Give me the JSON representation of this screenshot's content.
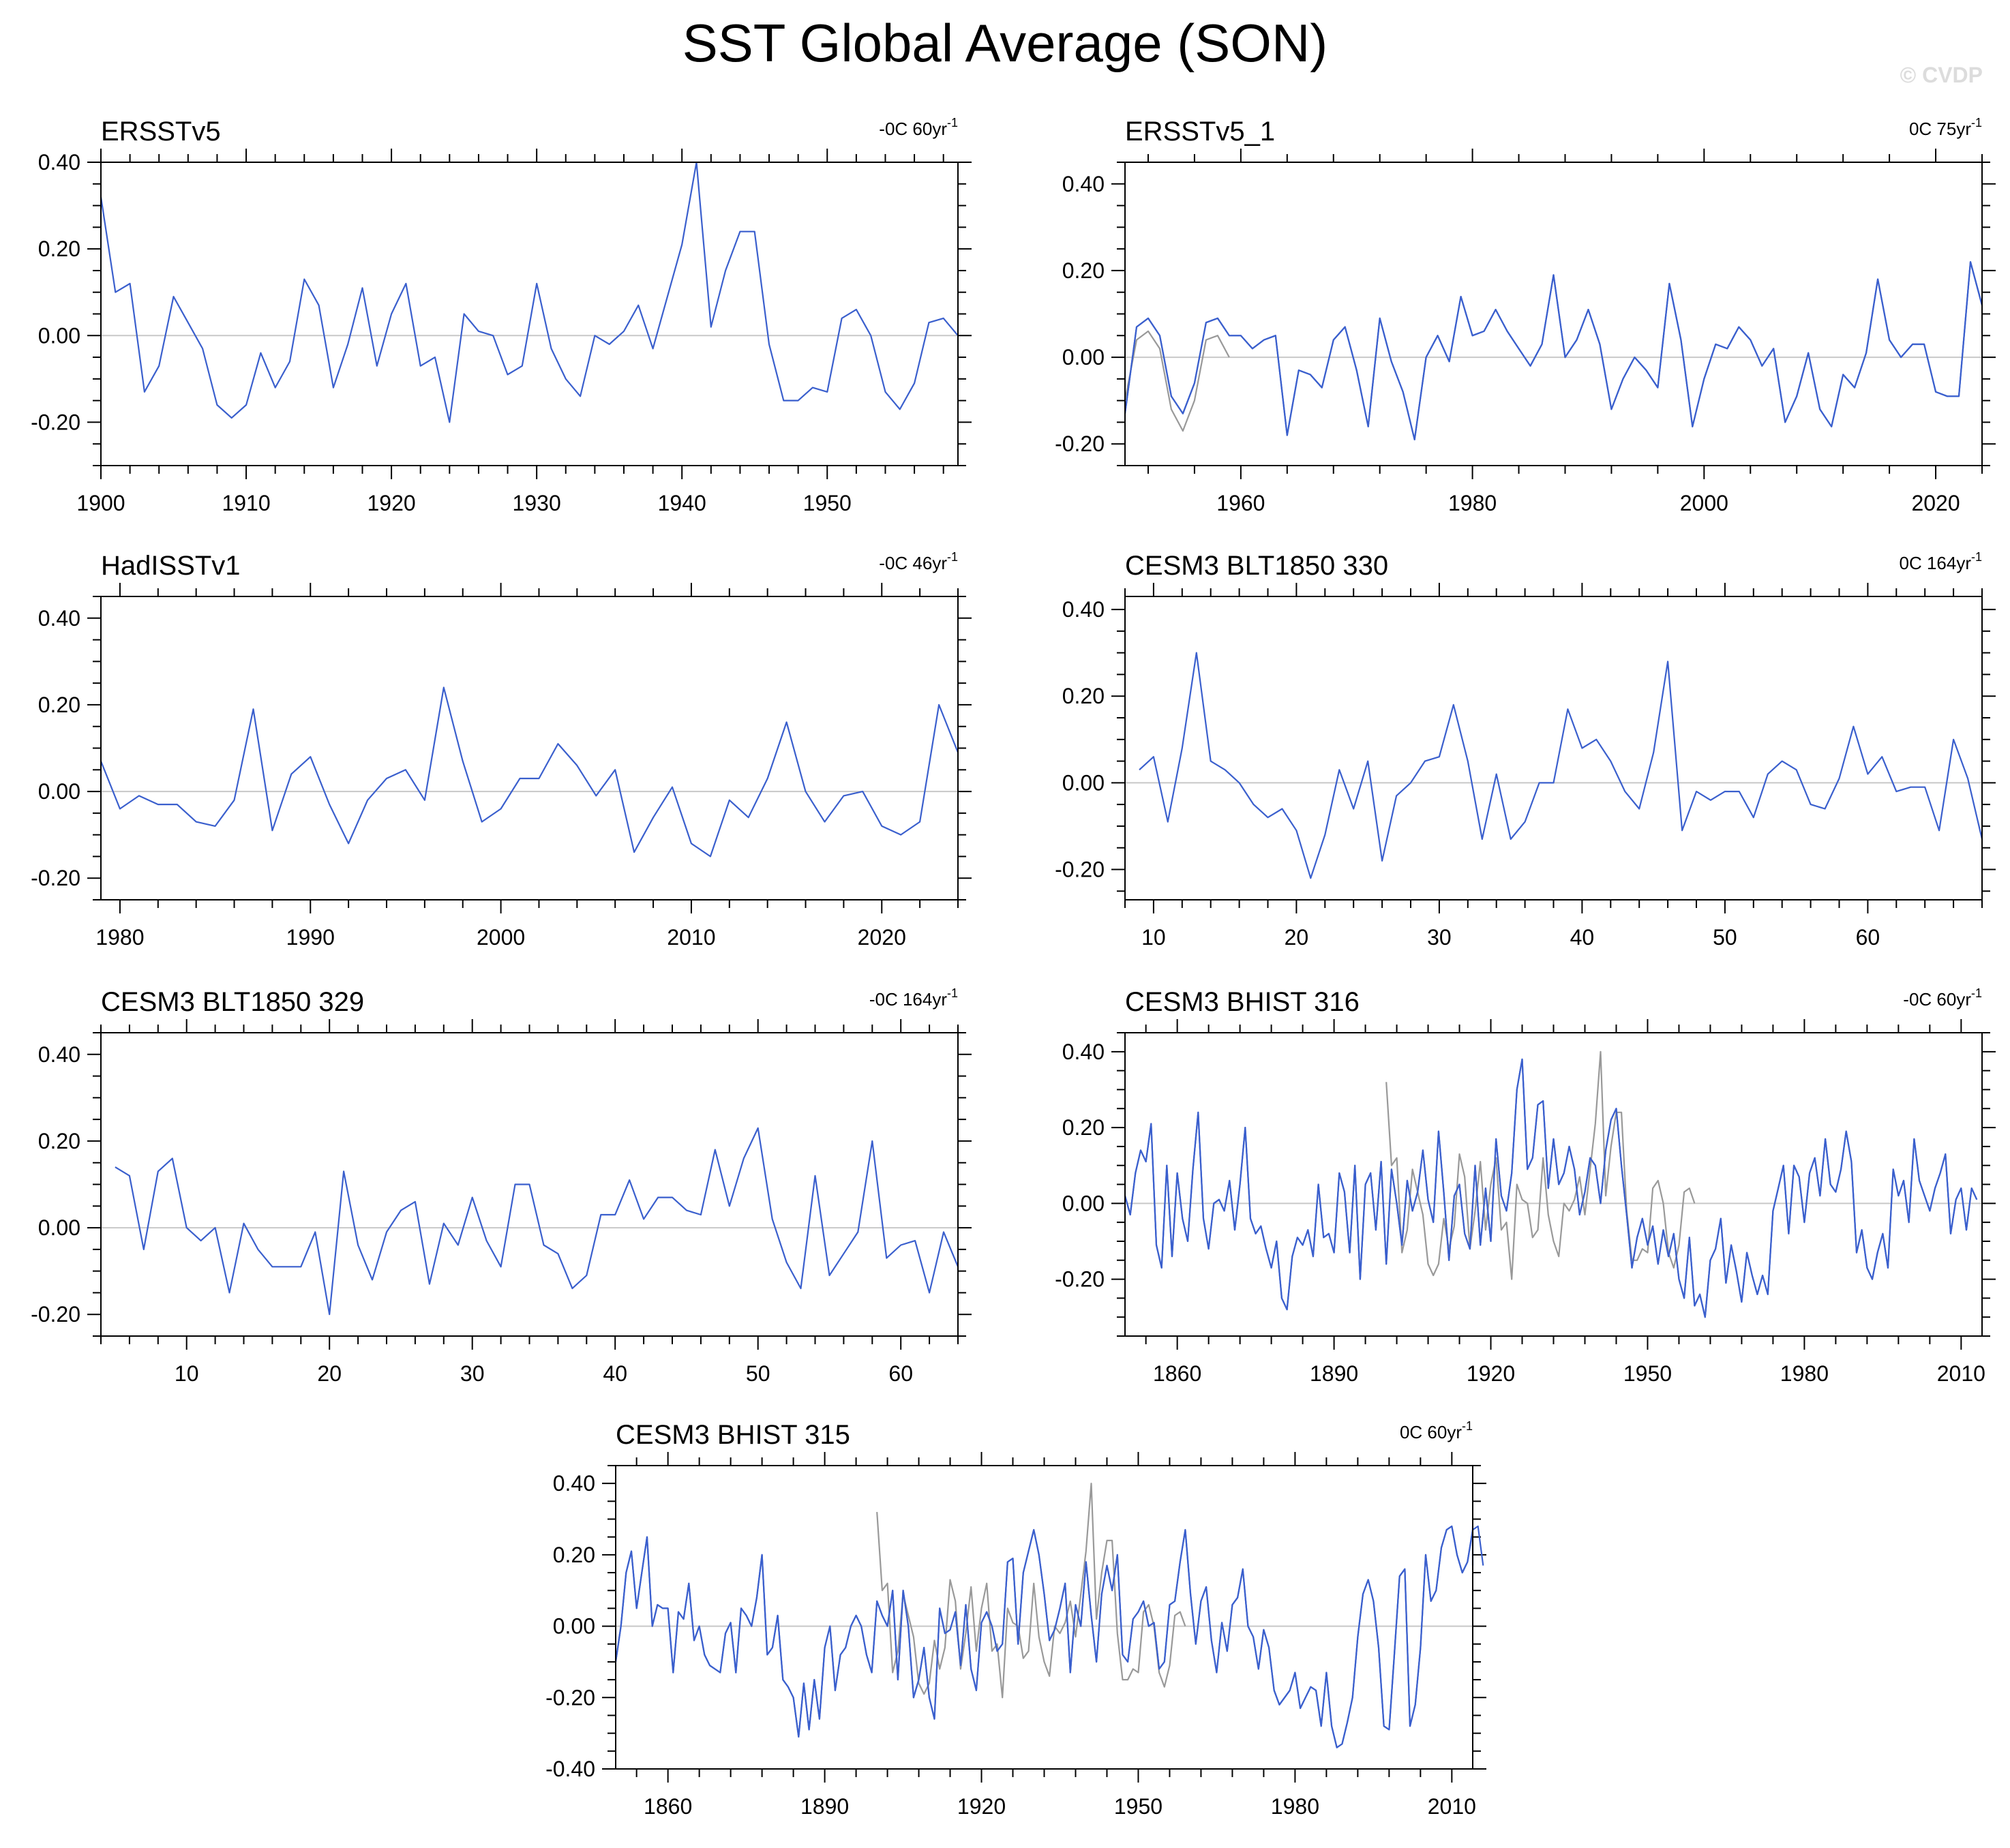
{
  "title": "SST Global Average (SON)",
  "watermark": "© CVDP",
  "colors": {
    "series": "#3a5fcd",
    "observed": "#999999",
    "zero_line": "#c8c8c8"
  },
  "chart_data": [
    {
      "type": "line",
      "title": "ERSSTv5",
      "trend": "-0C 60yr-1",
      "xlim": [
        1900,
        1959
      ],
      "ylim": [
        -0.3,
        0.4
      ],
      "xticks": [
        1900,
        1910,
        1920,
        1930,
        1940,
        1950
      ],
      "yticks": [
        -0.2,
        0.0,
        0.2,
        0.4
      ],
      "x_start": 1900,
      "x_step": 1,
      "series": [
        {
          "name": "ERSSTv5",
          "values": [
            0.32,
            0.1,
            0.12,
            -0.13,
            -0.07,
            0.09,
            0.03,
            -0.03,
            -0.16,
            -0.19,
            -0.16,
            -0.04,
            -0.12,
            -0.06,
            0.13,
            0.07,
            -0.12,
            -0.02,
            0.11,
            -0.07,
            0.05,
            0.12,
            -0.07,
            -0.05,
            -0.2,
            0.05,
            0.01,
            0.0,
            -0.09,
            -0.07,
            0.12,
            -0.03,
            -0.1,
            -0.14,
            0.0,
            -0.02,
            0.01,
            0.07,
            -0.03,
            0.09,
            0.21,
            0.4,
            0.02,
            0.15,
            0.24,
            0.24,
            -0.02,
            -0.15,
            -0.15,
            -0.12,
            -0.13,
            0.04,
            0.06,
            0.0,
            -0.13,
            -0.17,
            -0.11,
            0.03,
            0.04,
            0.0
          ]
        }
      ]
    },
    {
      "type": "line",
      "title": "ERSSTv5_1",
      "trend": "0C 75yr-1",
      "xlim": [
        1950,
        2024
      ],
      "ylim": [
        -0.25,
        0.45
      ],
      "xticks": [
        1960,
        1980,
        2000,
        2020
      ],
      "yticks": [
        -0.2,
        0.0,
        0.2,
        0.4
      ],
      "x_start": 1950,
      "x_step": 1,
      "series": [
        {
          "name": "ERSSTv5_1",
          "values": [
            -0.13,
            0.07,
            0.09,
            0.05,
            -0.09,
            -0.13,
            -0.06,
            0.08,
            0.09,
            0.05,
            0.05,
            0.02,
            0.04,
            0.05,
            -0.18,
            -0.03,
            -0.04,
            -0.07,
            0.04,
            0.07,
            -0.03,
            -0.16,
            0.09,
            -0.01,
            -0.08,
            -0.19,
            0.0,
            0.05,
            -0.01,
            0.14,
            0.05,
            0.06,
            0.11,
            0.06,
            0.02,
            -0.02,
            0.03,
            0.19,
            0.0,
            0.04,
            0.11,
            0.03,
            -0.12,
            -0.05,
            0.0,
            -0.03,
            -0.07,
            0.17,
            0.04,
            -0.16,
            -0.05,
            0.03,
            0.02,
            0.07,
            0.04,
            -0.02,
            0.02,
            -0.15,
            -0.09,
            0.01,
            -0.12,
            -0.16,
            -0.04,
            -0.07,
            0.01,
            0.18,
            0.04,
            0.0,
            0.03,
            0.03,
            -0.08,
            -0.09,
            -0.09,
            0.22,
            0.12
          ]
        },
        {
          "name": "observed",
          "values": [
            -0.1,
            0.04,
            0.06,
            0.02,
            -0.12,
            -0.17,
            -0.1,
            0.04,
            0.05,
            0.0
          ]
        }
      ]
    },
    {
      "type": "line",
      "title": "HadISSTv1",
      "trend": "-0C 46yr-1",
      "xlim": [
        1979,
        2024
      ],
      "ylim": [
        -0.25,
        0.45
      ],
      "xticks": [
        1980,
        1990,
        2000,
        2010,
        2020
      ],
      "yticks": [
        -0.2,
        0.0,
        0.2,
        0.4
      ],
      "x_start": 1979,
      "x_step": 1,
      "series": [
        {
          "name": "HadISSTv1",
          "values": [
            0.07,
            -0.04,
            -0.01,
            -0.03,
            -0.03,
            -0.07,
            -0.08,
            -0.02,
            0.19,
            -0.09,
            0.04,
            0.08,
            -0.03,
            -0.12,
            -0.02,
            0.03,
            0.05,
            -0.02,
            0.24,
            0.07,
            -0.07,
            -0.04,
            0.03,
            0.03,
            0.11,
            0.06,
            -0.01,
            0.05,
            -0.14,
            -0.06,
            0.01,
            -0.12,
            -0.15,
            -0.02,
            -0.06,
            0.03,
            0.16,
            0.0,
            -0.07,
            -0.01,
            0.0,
            -0.08,
            -0.1,
            -0.07,
            0.2,
            0.09
          ]
        }
      ]
    },
    {
      "type": "line",
      "title": "CESM3 BLT1850 330",
      "trend": "0C 164yr-1",
      "xlim": [
        8,
        68
      ],
      "ylim": [
        -0.27,
        0.43
      ],
      "xticks": [
        10,
        20,
        30,
        40,
        50,
        60
      ],
      "yticks": [
        -0.2,
        0.0,
        0.2,
        0.4
      ],
      "x_start": 9,
      "x_step": 1,
      "series": [
        {
          "name": "CESM3 BLT1850 330",
          "values": [
            0.03,
            0.06,
            -0.09,
            0.08,
            0.3,
            0.05,
            0.03,
            0.0,
            -0.05,
            -0.08,
            -0.06,
            -0.11,
            -0.22,
            -0.12,
            0.03,
            -0.06,
            0.05,
            -0.18,
            -0.03,
            0.0,
            0.05,
            0.06,
            0.18,
            0.05,
            -0.13,
            0.02,
            -0.13,
            -0.09,
            0.0,
            0.0,
            0.17,
            0.08,
            0.1,
            0.05,
            -0.02,
            -0.06,
            0.07,
            0.28,
            -0.11,
            -0.02,
            -0.04,
            -0.02,
            -0.02,
            -0.08,
            0.02,
            0.05,
            0.03,
            -0.05,
            -0.06,
            0.01,
            0.13,
            0.02,
            0.06,
            -0.02,
            -0.01,
            -0.01,
            -0.11,
            0.1,
            0.01,
            -0.13
          ]
        }
      ]
    },
    {
      "type": "line",
      "title": "CESM3 BLT1850 329",
      "trend": "-0C 164yr-1",
      "xlim": [
        4,
        64
      ],
      "ylim": [
        -0.25,
        0.45
      ],
      "xticks": [
        10,
        20,
        30,
        40,
        50,
        60
      ],
      "yticks": [
        -0.2,
        0.0,
        0.2,
        0.4
      ],
      "x_start": 5,
      "x_step": 1,
      "series": [
        {
          "name": "CESM3 BLT1850 329",
          "values": [
            0.14,
            0.12,
            -0.05,
            0.13,
            0.16,
            0.0,
            -0.03,
            0.0,
            -0.15,
            0.01,
            -0.05,
            -0.09,
            -0.09,
            -0.09,
            -0.01,
            -0.2,
            0.13,
            -0.04,
            -0.12,
            -0.01,
            0.04,
            0.06,
            -0.13,
            0.01,
            -0.04,
            0.07,
            -0.03,
            -0.09,
            0.1,
            0.1,
            -0.04,
            -0.06,
            -0.14,
            -0.11,
            0.03,
            0.03,
            0.11,
            0.02,
            0.07,
            0.07,
            0.04,
            0.03,
            0.18,
            0.05,
            0.16,
            0.23,
            0.02,
            -0.08,
            -0.14,
            0.12,
            -0.11,
            -0.06,
            -0.01,
            0.2,
            -0.07,
            -0.04,
            -0.03,
            -0.15,
            -0.01,
            -0.09
          ]
        }
      ]
    },
    {
      "type": "line",
      "title": "CESM3 BHIST 316",
      "trend": "-0C 60yr-1",
      "xlim": [
        1850,
        2014
      ],
      "ylim": [
        -0.35,
        0.45
      ],
      "xticks": [
        1860,
        1890,
        1920,
        1950,
        1980,
        2010
      ],
      "yticks": [
        -0.2,
        0.0,
        0.2,
        0.4
      ],
      "x_start": 1850,
      "x_step": 1,
      "series": [
        {
          "name": "CESM3 BHIST 316",
          "values": [
            0.02,
            -0.03,
            0.08,
            0.14,
            0.11,
            0.21,
            -0.11,
            -0.17,
            0.1,
            -0.14,
            0.08,
            -0.04,
            -0.1,
            0.09,
            0.24,
            -0.04,
            -0.12,
            0.0,
            0.01,
            -0.02,
            0.06,
            -0.07,
            0.05,
            0.2,
            -0.04,
            -0.08,
            -0.06,
            -0.12,
            -0.17,
            -0.1,
            -0.25,
            -0.28,
            -0.14,
            -0.09,
            -0.11,
            -0.07,
            -0.14,
            0.05,
            -0.09,
            -0.08,
            -0.13,
            0.08,
            0.03,
            -0.13,
            0.1,
            -0.2,
            0.05,
            0.08,
            -0.07,
            0.11,
            -0.16,
            0.09,
            0.0,
            -0.11,
            0.06,
            -0.02,
            0.03,
            0.14,
            0.01,
            -0.05,
            0.19,
            0.03,
            -0.15,
            0.02,
            0.05,
            -0.08,
            -0.12,
            0.1,
            -0.11,
            0.04,
            -0.1,
            0.17,
            0.02,
            -0.02,
            0.08,
            0.3,
            0.38,
            0.09,
            0.12,
            0.26,
            0.27,
            0.04,
            0.17,
            0.05,
            0.08,
            0.15,
            0.09,
            -0.03,
            0.03,
            0.12,
            0.1,
            0.0,
            0.14,
            0.22,
            0.25,
            0.1,
            -0.03,
            -0.17,
            -0.09,
            -0.04,
            -0.11,
            -0.06,
            -0.16,
            -0.07,
            -0.14,
            -0.08,
            -0.2,
            -0.25,
            -0.09,
            -0.27,
            -0.24,
            -0.3,
            -0.15,
            -0.12,
            -0.04,
            -0.21,
            -0.11,
            -0.18,
            -0.26,
            -0.13,
            -0.19,
            -0.24,
            -0.19,
            -0.24,
            -0.02,
            0.04,
            0.1,
            -0.08,
            0.1,
            0.07,
            -0.05,
            0.08,
            0.12,
            0.02,
            0.17,
            0.05,
            0.03,
            0.09,
            0.19,
            0.11,
            -0.13,
            -0.07,
            -0.17,
            -0.2,
            -0.13,
            -0.08,
            -0.17,
            0.09,
            0.02,
            0.06,
            -0.05,
            0.17,
            0.06,
            0.02,
            -0.02,
            0.04,
            0.08,
            0.13,
            -0.08,
            0.01,
            0.04,
            -0.07,
            0.04,
            0.01
          ]
        },
        {
          "name": "observed",
          "values": [
            0.32,
            0.1,
            0.12,
            -0.13,
            -0.07,
            0.09,
            0.03,
            -0.03,
            -0.16,
            -0.19,
            -0.16,
            -0.04,
            -0.12,
            -0.06,
            0.13,
            0.07,
            -0.12,
            -0.02,
            0.11,
            -0.07,
            0.05,
            0.12,
            -0.07,
            -0.05,
            -0.2,
            0.05,
            0.01,
            0.0,
            -0.09,
            -0.07,
            0.12,
            -0.03,
            -0.1,
            -0.14,
            0.0,
            -0.02,
            0.01,
            0.07,
            -0.03,
            0.09,
            0.21,
            0.4,
            0.02,
            0.15,
            0.24,
            0.24,
            -0.02,
            -0.15,
            -0.15,
            -0.12,
            -0.13,
            0.04,
            0.06,
            0.0,
            -0.13,
            -0.17,
            -0.11,
            0.03,
            0.04,
            0.0
          ],
          "x_start": 1900
        }
      ]
    },
    {
      "type": "line",
      "title": "CESM3 BHIST 315",
      "trend": "0C 60yr-1",
      "xlim": [
        1850,
        2014
      ],
      "ylim": [
        -0.4,
        0.45
      ],
      "xticks": [
        1860,
        1890,
        1920,
        1950,
        1980,
        2010
      ],
      "yticks": [
        -0.4,
        -0.2,
        0.0,
        0.2,
        0.4
      ],
      "x_start": 1850,
      "x_step": 1,
      "series": [
        {
          "name": "CESM3 BHIST 315",
          "values": [
            -0.1,
            0.0,
            0.15,
            0.21,
            0.05,
            0.15,
            0.25,
            0.0,
            0.06,
            0.05,
            0.05,
            -0.13,
            0.04,
            0.02,
            0.12,
            -0.04,
            0.0,
            -0.08,
            -0.11,
            -0.12,
            -0.13,
            -0.02,
            0.01,
            -0.13,
            0.05,
            0.03,
            0.0,
            0.08,
            0.2,
            -0.08,
            -0.06,
            0.03,
            -0.15,
            -0.17,
            -0.2,
            -0.31,
            -0.16,
            -0.29,
            -0.15,
            -0.26,
            -0.06,
            0.0,
            -0.18,
            -0.08,
            -0.06,
            0.0,
            0.03,
            0.0,
            -0.08,
            -0.13,
            0.07,
            0.03,
            0.0,
            0.1,
            -0.15,
            0.1,
            0.0,
            -0.2,
            -0.15,
            -0.06,
            -0.2,
            -0.26,
            0.05,
            -0.02,
            -0.01,
            0.04,
            -0.11,
            0.06,
            -0.12,
            -0.18,
            0.01,
            0.04,
            0.0,
            -0.07,
            -0.05,
            0.18,
            0.19,
            -0.05,
            0.15,
            0.21,
            0.27,
            0.2,
            0.09,
            -0.04,
            -0.01,
            0.05,
            0.12,
            -0.13,
            0.06,
            0.0,
            0.18,
            0.03,
            -0.1,
            0.09,
            0.17,
            0.1,
            0.2,
            -0.08,
            -0.1,
            0.02,
            0.04,
            0.07,
            0.0,
            0.01,
            -0.12,
            -0.1,
            0.06,
            0.07,
            0.18,
            0.27,
            0.09,
            -0.05,
            0.07,
            0.11,
            -0.04,
            -0.13,
            0.01,
            -0.07,
            0.06,
            0.08,
            0.16,
            0.0,
            -0.03,
            -0.12,
            -0.01,
            -0.06,
            -0.18,
            -0.22,
            -0.2,
            -0.18,
            -0.13,
            -0.23,
            -0.2,
            -0.17,
            -0.18,
            -0.28,
            -0.13,
            -0.28,
            -0.34,
            -0.33,
            -0.27,
            -0.2,
            -0.03,
            0.09,
            0.13,
            0.07,
            -0.06,
            -0.28,
            -0.29,
            -0.08,
            0.14,
            0.16,
            -0.28,
            -0.22,
            -0.06,
            0.2,
            0.07,
            0.1,
            0.22,
            0.27,
            0.28,
            0.2,
            0.15,
            0.18,
            0.27,
            0.28,
            0.17
          ]
        },
        {
          "name": "observed",
          "values": [
            0.32,
            0.1,
            0.12,
            -0.13,
            -0.07,
            0.09,
            0.03,
            -0.03,
            -0.16,
            -0.19,
            -0.16,
            -0.04,
            -0.12,
            -0.06,
            0.13,
            0.07,
            -0.12,
            -0.02,
            0.11,
            -0.07,
            0.05,
            0.12,
            -0.07,
            -0.05,
            -0.2,
            0.05,
            0.01,
            0.0,
            -0.09,
            -0.07,
            0.12,
            -0.03,
            -0.1,
            -0.14,
            0.0,
            -0.02,
            0.01,
            0.07,
            -0.03,
            0.09,
            0.21,
            0.4,
            0.02,
            0.15,
            0.24,
            0.24,
            -0.02,
            -0.15,
            -0.15,
            -0.12,
            -0.13,
            0.04,
            0.06,
            0.0,
            -0.13,
            -0.17,
            -0.11,
            0.03,
            0.04,
            0.0
          ],
          "x_start": 1900
        }
      ]
    }
  ]
}
